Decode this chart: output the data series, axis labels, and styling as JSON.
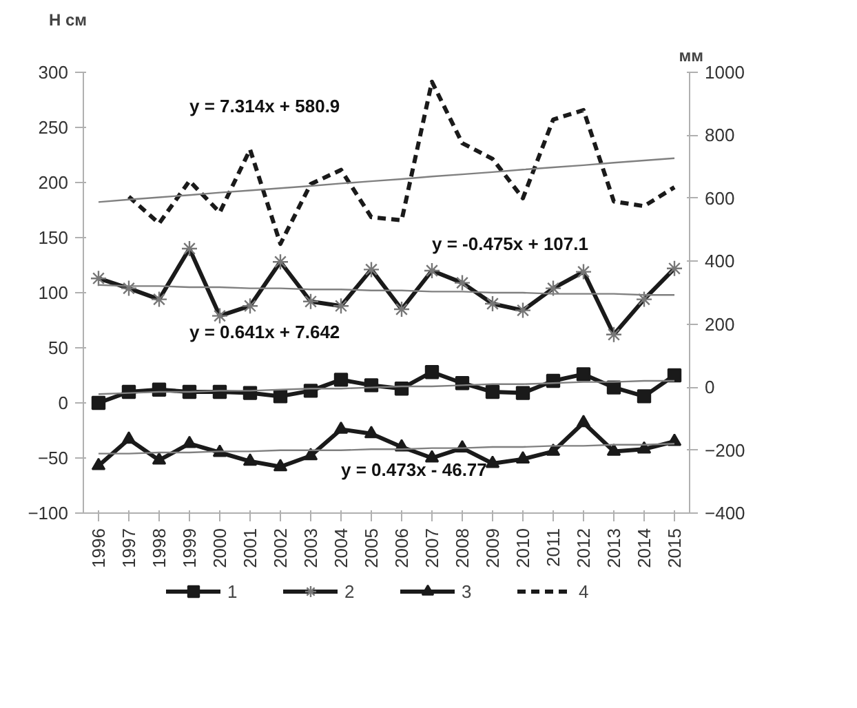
{
  "chart_data": {
    "type": "line",
    "ylabel": "Н см",
    "y2label": "мм",
    "categories": [
      "1996",
      "1997",
      "1998",
      "1999",
      "2000",
      "2001",
      "2002",
      "2003",
      "2004",
      "2005",
      "2006",
      "2007",
      "2008",
      "2009",
      "2010",
      "2011",
      "2012",
      "2013",
      "2014",
      "2015"
    ],
    "ylim": [
      -100,
      300
    ],
    "yticks": [
      -100,
      -50,
      0,
      50,
      100,
      150,
      200,
      250,
      300
    ],
    "y2lim": [
      -400,
      1000
    ],
    "y2ticks": [
      -400,
      -200,
      0,
      200,
      400,
      600,
      800,
      1000
    ],
    "grid": false,
    "legend": "bottom",
    "series": [
      {
        "name": "1",
        "color": "#1a1a1a",
        "marker": "square",
        "line_style": "solid",
        "values": [
          0,
          10,
          12,
          10,
          10,
          9,
          6,
          11,
          21,
          16,
          13,
          28,
          18,
          10,
          9,
          20,
          26,
          14,
          6,
          25
        ]
      },
      {
        "name": "2",
        "color": "#1a1a1a",
        "marker": "cross",
        "line_style": "solid",
        "values": [
          113,
          104,
          94,
          140,
          79,
          88,
          128,
          92,
          88,
          121,
          85,
          120,
          109,
          90,
          84,
          104,
          119,
          62,
          94,
          122
        ]
      },
      {
        "name": "3",
        "color": "#1a1a1a",
        "marker": "triangle",
        "line_style": "solid",
        "values": [
          -57,
          -33,
          -52,
          -37,
          -45,
          -53,
          -58,
          -48,
          -24,
          -28,
          -40,
          -50,
          -41,
          -55,
          -51,
          -44,
          -18,
          -44,
          -42,
          -35
        ]
      },
      {
        "name": "4",
        "color": "#1a1a1a",
        "marker": "none",
        "line_style": "dashed",
        "axis": "y2",
        "values": [
          null,
          605,
          520,
          655,
          555,
          755,
          455,
          645,
          690,
          540,
          530,
          970,
          775,
          725,
          600,
          850,
          880,
          590,
          575,
          635
        ]
      },
      {
        "type": "line",
        "color": "#808080",
        "marker": "none",
        "line_style": "solid",
        "values": [
          8,
          9,
          10,
          10,
          11,
          11,
          12,
          13,
          13,
          14,
          15,
          15,
          16,
          17,
          17,
          18,
          19,
          19,
          20,
          20
        ]
      },
      {
        "type": "line",
        "color": "#808080",
        "marker": "none",
        "line_style": "solid",
        "values": [
          107,
          106,
          106,
          105,
          105,
          104,
          104,
          103,
          103,
          102,
          102,
          101,
          101,
          100,
          100,
          99,
          99,
          99,
          98,
          98
        ]
      },
      {
        "type": "line",
        "color": "#808080",
        "marker": "none",
        "line_style": "solid",
        "values": [
          -46,
          -46,
          -45,
          -45,
          -44,
          -44,
          -43,
          -43,
          -43,
          -42,
          -42,
          -41,
          -41,
          -40,
          -40,
          -39,
          -39,
          -38,
          -38,
          -37
        ]
      },
      {
        "type": "line",
        "color": "#808080",
        "marker": "none",
        "line_style": "solid",
        "axis": "y2",
        "values": [
          588,
          596,
          603,
          610,
          618,
          625,
          632,
          639,
          647,
          654,
          661,
          669,
          676,
          683,
          691,
          698,
          705,
          713,
          720,
          727
        ]
      }
    ],
    "annotations": [
      "y = 7.314x + 580.9",
      "y = -0.475x + 107.1",
      "y = 0.641x + 7.642",
      "y = 0.473x - 46.77"
    ]
  }
}
